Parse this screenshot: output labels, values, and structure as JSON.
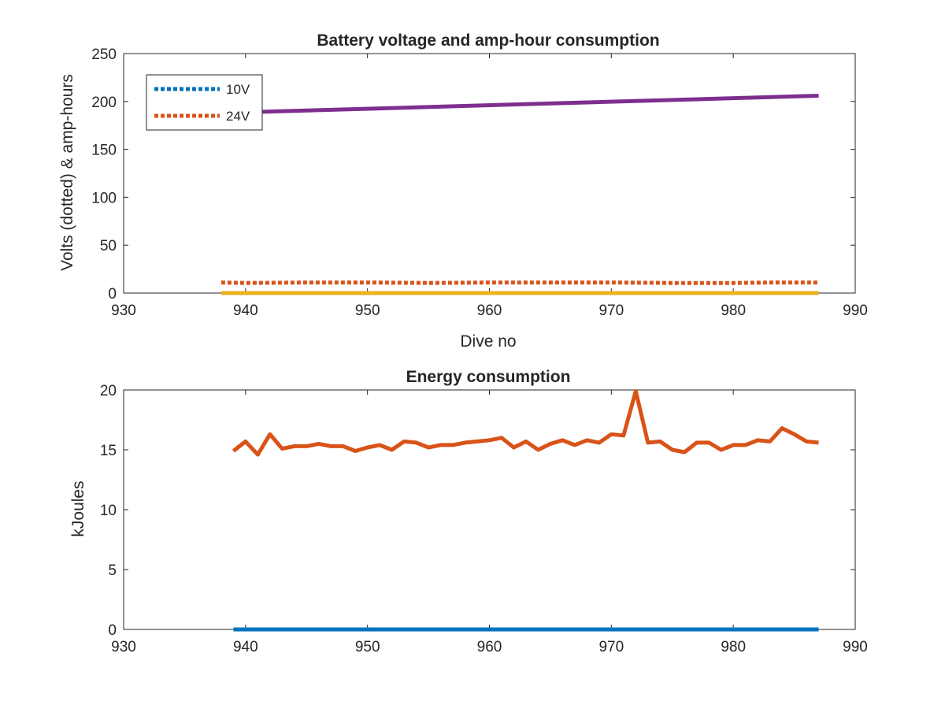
{
  "chart_data": [
    {
      "type": "line",
      "title": "Battery voltage and amp-hour consumption",
      "xlabel": "Dive no",
      "ylabel": "Volts (dotted) & amp-hours",
      "xlim": [
        930,
        990
      ],
      "ylim": [
        0,
        250
      ],
      "xticks": [
        "930",
        "940",
        "950",
        "960",
        "970",
        "980",
        "990"
      ],
      "yticks": [
        "0",
        "50",
        "100",
        "150",
        "200",
        "250"
      ],
      "grid": false,
      "legend_position": "top-left",
      "series": [
        {
          "name": "10V",
          "style": "dotted",
          "color": "#0072bd",
          "x": [
            938,
            987
          ],
          "y": [
            0,
            0
          ]
        },
        {
          "name": "24V",
          "style": "dotted",
          "color": "#d95319",
          "x": [
            938,
            940,
            945,
            950,
            955,
            960,
            965,
            970,
            975,
            980,
            983,
            987
          ],
          "y": [
            11,
            10.5,
            11,
            11,
            10.5,
            11,
            11,
            11,
            10.5,
            10.5,
            11,
            11
          ]
        },
        {
          "style": "solid",
          "color": "#edb120",
          "x": [
            938,
            987
          ],
          "y": [
            0,
            0
          ]
        },
        {
          "style": "solid",
          "color": "#7e2f8e",
          "x": [
            938,
            987
          ],
          "y": [
            188,
            206
          ]
        }
      ]
    },
    {
      "type": "line",
      "title": "Energy consumption",
      "xlabel": "",
      "ylabel": "kJoules",
      "xlim": [
        930,
        990
      ],
      "ylim": [
        0,
        20
      ],
      "xticks": [
        "930",
        "940",
        "950",
        "960",
        "970",
        "980",
        "990"
      ],
      "yticks": [
        "0",
        "5",
        "10",
        "15",
        "20"
      ],
      "grid": false,
      "series": [
        {
          "style": "solid",
          "color": "#0072bd",
          "x": [
            939,
            987
          ],
          "y": [
            0,
            0
          ]
        },
        {
          "style": "solid",
          "color": "#d95319",
          "x": [
            939,
            940,
            941,
            942,
            943,
            944,
            945,
            946,
            947,
            948,
            949,
            950,
            951,
            952,
            953,
            954,
            955,
            956,
            957,
            958,
            959,
            960,
            961,
            962,
            963,
            964,
            965,
            966,
            967,
            968,
            969,
            970,
            971,
            972,
            973,
            974,
            975,
            976,
            977,
            978,
            979,
            980,
            981,
            982,
            983,
            984,
            985,
            986,
            987
          ],
          "y": [
            14.9,
            15.7,
            14.6,
            16.3,
            15.1,
            15.3,
            15.3,
            15.5,
            15.3,
            15.3,
            14.9,
            15.2,
            15.4,
            15.0,
            15.7,
            15.6,
            15.2,
            15.4,
            15.4,
            15.6,
            15.7,
            15.8,
            16.0,
            15.2,
            15.7,
            15.0,
            15.5,
            15.8,
            15.4,
            15.8,
            15.6,
            16.3,
            16.2,
            19.9,
            15.6,
            15.7,
            15.0,
            14.8,
            15.6,
            15.6,
            15.0,
            15.4,
            15.4,
            15.8,
            15.7,
            16.8,
            16.3,
            15.7,
            15.6
          ]
        }
      ]
    }
  ]
}
